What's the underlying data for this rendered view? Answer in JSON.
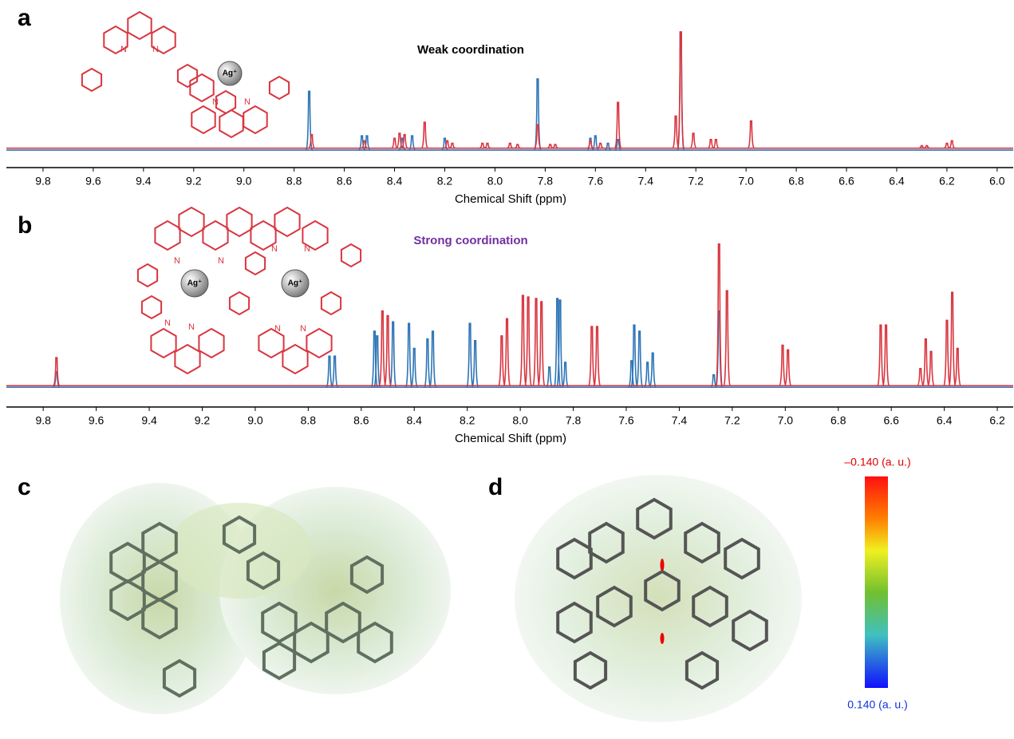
{
  "chart_data": [
    {
      "type": "spectrum",
      "panel_label": "a",
      "annotation": "Weak coordination",
      "annotation_color": "#000000",
      "xlabel": "Chemical Shift (ppm)",
      "xlim": [
        9.946,
        5.936
      ],
      "xticks": [
        9.8,
        9.6,
        9.4,
        9.2,
        {
          "value": 9.0,
          "label": "9.0"
        },
        8.8,
        8.6,
        8.4,
        8.2,
        {
          "value": 8.0,
          "label": "8.0"
        },
        7.8,
        7.6,
        7.4,
        7.2,
        {
          "value": 7.0,
          "label": "7.0"
        },
        6.8,
        6.6,
        6.4,
        6.2,
        {
          "value": 6.0,
          "label": "6.0"
        }
      ],
      "ylim": [
        0,
        100
      ],
      "structure_labels": [
        "N",
        "N",
        "N",
        "N",
        "Ag⁺"
      ],
      "series": [
        {
          "color": "#2e75b6",
          "baseline": 4.5,
          "x": [
            8.74,
            8.53,
            8.51,
            8.37,
            8.33,
            8.2,
            7.83,
            7.62,
            7.6,
            7.55,
            7.51,
            7.26
          ],
          "values": [
            52,
            16,
            16,
            14,
            16,
            14,
            62,
            14,
            16,
            10,
            13,
            100
          ]
        },
        {
          "color": "#d9353f",
          "baseline": 6,
          "x": [
            8.73,
            8.52,
            8.4,
            8.38,
            8.36,
            8.28,
            8.19,
            8.17,
            8.05,
            8.03,
            7.94,
            7.91,
            7.83,
            7.78,
            7.76,
            7.62,
            7.58,
            7.51,
            7.28,
            7.26,
            7.21,
            7.14,
            7.12,
            6.98,
            6.3,
            6.28,
            6.2,
            6.18
          ],
          "values": [
            17,
            12,
            14,
            18,
            17,
            27,
            12,
            10,
            10,
            10,
            10,
            9,
            25,
            9,
            9,
            12,
            10,
            43,
            32,
            100,
            18,
            13,
            13,
            28,
            8,
            8,
            10,
            12
          ]
        }
      ]
    },
    {
      "type": "spectrum",
      "panel_label": "b",
      "annotation": "Strong coordination",
      "annotation_color": "#7030a0",
      "xlabel": "Chemical Shift (ppm)",
      "xlim": [
        9.939,
        6.14
      ],
      "xticks": [
        9.8,
        9.6,
        9.4,
        9.2,
        {
          "value": 9.0,
          "label": "9.0"
        },
        8.8,
        8.6,
        8.4,
        8.2,
        {
          "value": 8.0,
          "label": "8.0"
        },
        7.8,
        7.6,
        7.4,
        7.2,
        {
          "value": 7.0,
          "label": "7.0"
        },
        6.8,
        6.6,
        6.4,
        6.2
      ],
      "ylim": [
        0,
        100
      ],
      "structure_labels": [
        "N",
        "N",
        "N",
        "N",
        "N",
        "N",
        "N",
        "N",
        "Ag⁺",
        "Ag⁺"
      ],
      "series": [
        {
          "color": "#2e75b6",
          "baseline": 5,
          "x": [
            9.75,
            8.72,
            8.7,
            8.55,
            8.54,
            8.48,
            8.42,
            8.4,
            8.35,
            8.33,
            8.19,
            8.17,
            7.89,
            7.86,
            7.85,
            7.83,
            7.58,
            7.57,
            7.55,
            7.52,
            7.5,
            7.27,
            7.25
          ],
          "values": [
            15,
            25,
            25,
            41,
            38,
            47,
            46,
            30,
            36,
            41,
            46,
            35,
            18,
            62,
            61,
            21,
            22,
            45,
            41,
            21,
            27,
            13,
            54
          ]
        },
        {
          "color": "#d9353f",
          "baseline": 6,
          "x": [
            9.75,
            8.52,
            8.5,
            8.07,
            8.05,
            7.99,
            7.97,
            7.94,
            7.92,
            7.73,
            7.71,
            7.25,
            7.22,
            7.01,
            6.99,
            6.64,
            6.62,
            6.49,
            6.47,
            6.45,
            6.39,
            6.37,
            6.35
          ],
          "values": [
            24,
            54,
            51,
            38,
            49,
            64,
            63,
            62,
            60,
            44,
            44,
            97,
            67,
            32,
            29,
            45,
            45,
            17,
            36,
            28,
            48,
            66,
            30
          ]
        }
      ]
    }
  ],
  "panels": [
    {
      "label": "c"
    },
    {
      "label": "d"
    }
  ],
  "colorbar": {
    "max_label": "–0.140 (a. u.)",
    "min_label": "0.140 (a. u.)"
  }
}
